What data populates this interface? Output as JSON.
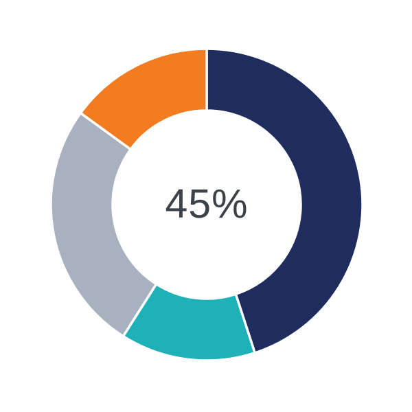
{
  "chart_data": {
    "type": "pie",
    "donut": true,
    "title": "",
    "center_label": "45%",
    "direction": "clockwise",
    "start_angle_deg": 0,
    "inner_radius_ratio": 0.6,
    "label_color": "#3b4249",
    "separator_color": "#ffffff",
    "segments": [
      {
        "name": "navy",
        "value": 45,
        "color": "#1e2c5e"
      },
      {
        "name": "teal",
        "value": 14,
        "color": "#1fb1b8"
      },
      {
        "name": "gray",
        "value": 26,
        "color": "#a8b1bf"
      },
      {
        "name": "orange",
        "value": 15,
        "color": "#f37c20"
      }
    ]
  }
}
